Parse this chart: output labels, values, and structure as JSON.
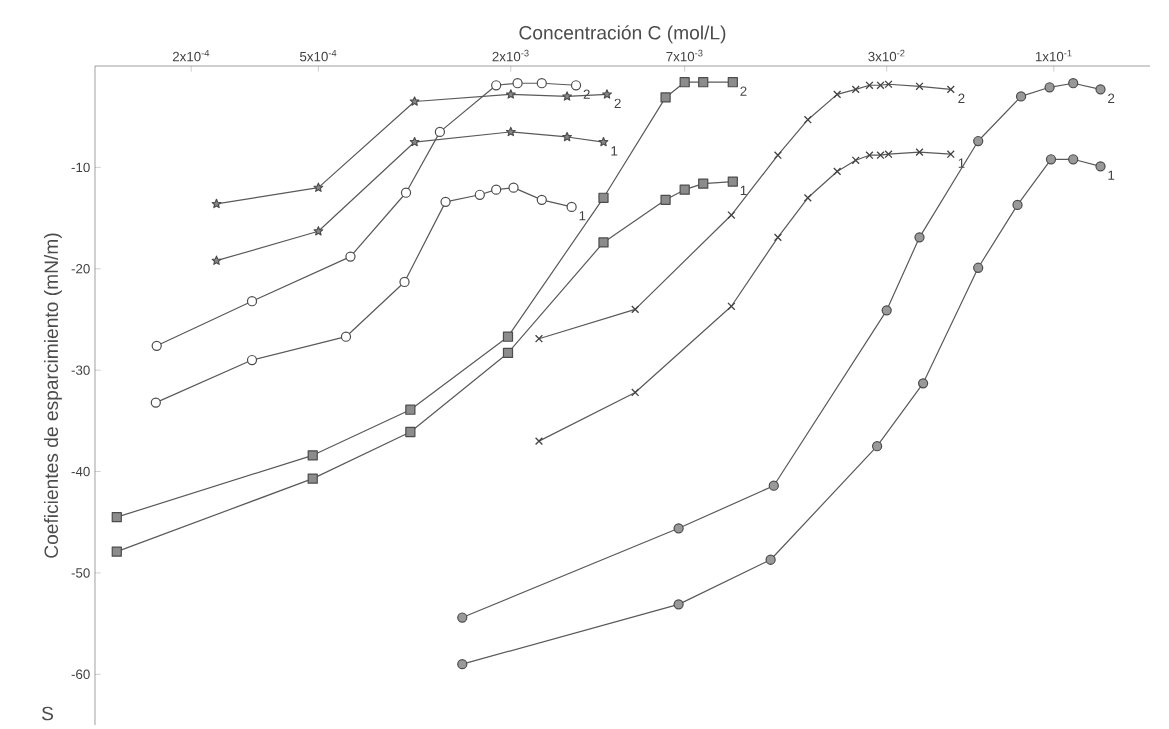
{
  "chart_data": {
    "type": "line",
    "xlabel": "Concentración  C (mol/L)",
    "ylabel": "Coeficientes de esparcimiento (mN/m)",
    "annotations": [
      "S"
    ],
    "log": "x",
    "grid": false,
    "xlim": [
      0.0001,
      0.2
    ],
    "ylim": [
      -65,
      0
    ],
    "xticks": [
      {
        "value": 0.0002,
        "label": "2x10$^{-4}$"
      },
      {
        "value": 0.0005,
        "label": "5x10$^{-4}$"
      },
      {
        "value": 0.002,
        "label": "2x10$^{-3}$"
      },
      {
        "value": 0.007,
        "label": "7x10$^{-3}$"
      },
      {
        "value": 0.03,
        "label": "3x10$^{-2}$"
      },
      {
        "value": 0.1,
        "label": "1x10$^{-1}$"
      }
    ],
    "yticks": [
      -60,
      -50,
      -40,
      -30,
      -20,
      -10
    ],
    "series": [
      {
        "name": "2",
        "marker": "star",
        "color": "#888888",
        "x": [
          0.00024,
          0.0005,
          0.001,
          0.002,
          0.003,
          0.004
        ],
        "values": [
          -13.6,
          -12.0,
          -3.5,
          -2.8,
          -3.0,
          -2.8
        ]
      },
      {
        "name": "1",
        "marker": "star",
        "color": "#888888",
        "x": [
          0.00024,
          0.0005,
          0.001,
          0.002,
          0.003,
          0.0039
        ],
        "values": [
          -19.2,
          -16.3,
          -7.5,
          -6.5,
          -7.0,
          -7.5
        ]
      },
      {
        "name": "2",
        "marker": "circle",
        "color": "#ffffff",
        "x": [
          0.000156,
          0.00031,
          0.00063,
          0.00094,
          0.0012,
          0.0018,
          0.0021,
          0.0025,
          0.0032
        ],
        "values": [
          -27.6,
          -23.2,
          -18.8,
          -12.5,
          -6.5,
          -1.9,
          -1.7,
          -1.7,
          -1.9
        ]
      },
      {
        "name": "1",
        "marker": "circle",
        "color": "#ffffff",
        "x": [
          0.000155,
          0.00031,
          0.00061,
          0.00093,
          0.00125,
          0.0016,
          0.0018,
          0.00204,
          0.0025,
          0.0031
        ],
        "values": [
          -33.2,
          -29.0,
          -26.7,
          -21.3,
          -13.4,
          -12.7,
          -12.2,
          -12.0,
          -13.2,
          -13.9
        ]
      },
      {
        "name": "2",
        "marker": "square",
        "color": "#8c8c8c",
        "x": [
          0.000117,
          0.00048,
          0.00097,
          0.00196,
          0.0039,
          0.0061,
          0.007,
          0.008,
          0.0099
        ],
        "values": [
          -44.5,
          -38.4,
          -33.9,
          -26.7,
          -13.0,
          -3.1,
          -1.6,
          -1.6,
          -1.6
        ]
      },
      {
        "name": "1",
        "marker": "square",
        "color": "#8c8c8c",
        "x": [
          0.000117,
          0.00048,
          0.00097,
          0.00196,
          0.0039,
          0.0061,
          0.007,
          0.008,
          0.0099
        ],
        "values": [
          -47.9,
          -40.7,
          -36.1,
          -28.3,
          -17.4,
          -13.2,
          -12.2,
          -11.6,
          -11.4
        ]
      },
      {
        "name": "2",
        "marker": "cross",
        "color": "#444444",
        "x": [
          0.00245,
          0.0049,
          0.0098,
          0.0137,
          0.017,
          0.021,
          0.024,
          0.0265,
          0.0287,
          0.0304,
          0.038,
          0.0476
        ],
        "values": [
          -26.9,
          -24.0,
          -14.7,
          -8.8,
          -5.3,
          -2.8,
          -2.3,
          -1.9,
          -1.9,
          -1.8,
          -2.0,
          -2.3
        ]
      },
      {
        "name": "1",
        "marker": "cross",
        "color": "#444444",
        "x": [
          0.00245,
          0.0049,
          0.0098,
          0.0137,
          0.017,
          0.021,
          0.024,
          0.0265,
          0.0287,
          0.0304,
          0.038,
          0.0476
        ],
        "values": [
          -37.0,
          -32.2,
          -23.7,
          -16.9,
          -13.0,
          -10.4,
          -9.3,
          -8.8,
          -8.8,
          -8.7,
          -8.5,
          -8.7
        ]
      },
      {
        "name": "2",
        "marker": "circle",
        "color": "#999999",
        "x": [
          0.00141,
          0.0067,
          0.0133,
          0.03,
          0.038,
          0.058,
          0.079,
          0.097,
          0.115,
          0.14
        ],
        "values": [
          -54.4,
          -45.6,
          -41.4,
          -24.1,
          -16.9,
          -7.4,
          -3.0,
          -2.1,
          -1.7,
          -2.3
        ]
      },
      {
        "name": "1",
        "marker": "circle",
        "color": "#999999",
        "x": [
          0.00141,
          0.0067,
          0.013,
          0.028,
          0.039,
          0.058,
          0.077,
          0.098,
          0.115,
          0.14
        ],
        "values": [
          -59.0,
          -53.1,
          -48.7,
          -37.5,
          -31.3,
          -19.9,
          -13.7,
          -9.2,
          -9.2,
          -9.9
        ]
      }
    ]
  }
}
